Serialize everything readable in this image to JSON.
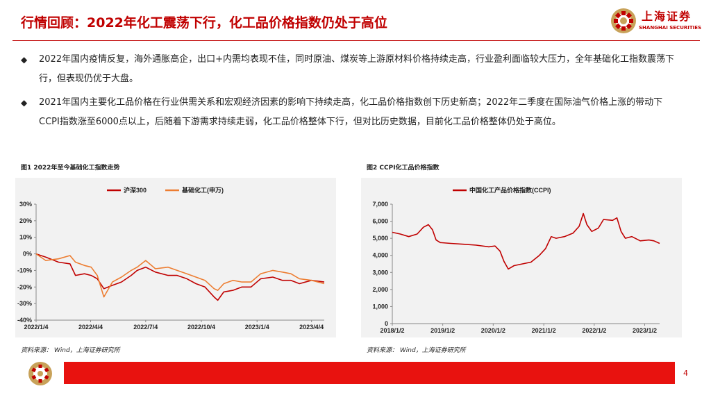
{
  "page": {
    "title": "行情回顾：2022年化工震荡下行，化工品价格指数仍处于高位",
    "logo_cn": "上海证券",
    "logo_en": "SHANGHAI SECURITIES",
    "page_number": "4",
    "brand_color": "#c00000"
  },
  "bullets": [
    "2022年国内疫情反复，海外通胀高企，出口+内需均表现不佳，同时原油、煤炭等上游原材料价格持续走高，行业盈利面临较大压力，全年基础化工指数震荡下行，但表现仍优于大盘。",
    "2021年国内主要化工品价格在行业供需关系和宏观经济因素的影响下持续走高，化工品价格指数创下历史新高；2022年二季度在国际油气价格上涨的带动下CCPI指数涨至6000点以上，后随着下游需求持续走弱，化工品价格整体下行，但对比历史数据，目前化工品价格整体仍处于高位。"
  ],
  "figure1": {
    "title": "图1 2022年至今基础化工指数走势",
    "source": "资料来源： Wind，上海证券研究所"
  },
  "figure2": {
    "title": "图2 CCPI化工品价格指数",
    "source": "资料来源： Wind，上海证券研究所"
  },
  "chart_data": [
    {
      "type": "line",
      "y_ticks": [
        "30%",
        "20%",
        "10%",
        "0%",
        "-10%",
        "-20%",
        "-30%",
        "-40%"
      ],
      "ylim": [
        -40,
        30
      ],
      "x_ticks": [
        "2022/1/4",
        "2022/4/4",
        "2022/7/4",
        "2022/10/4",
        "2023/1/4",
        "2023/4/4"
      ],
      "x_range": [
        "2022-01-04",
        "2023-04-25"
      ],
      "legend_position": "top",
      "series": [
        {
          "name": "沪深300",
          "color": "#c00000",
          "points": [
            [
              "2022-01-04",
              0
            ],
            [
              "2022-01-20",
              -2
            ],
            [
              "2022-02-10",
              -5
            ],
            [
              "2022-03-01",
              -6
            ],
            [
              "2022-03-10",
              -13
            ],
            [
              "2022-03-25",
              -12
            ],
            [
              "2022-04-05",
              -13
            ],
            [
              "2022-04-15",
              -15
            ],
            [
              "2022-04-26",
              -21
            ],
            [
              "2022-05-10",
              -19
            ],
            [
              "2022-05-25",
              -17
            ],
            [
              "2022-06-10",
              -13
            ],
            [
              "2022-06-20",
              -10
            ],
            [
              "2022-07-04",
              -8
            ],
            [
              "2022-07-20",
              -11
            ],
            [
              "2022-08-10",
              -13
            ],
            [
              "2022-08-25",
              -13
            ],
            [
              "2022-09-10",
              -15
            ],
            [
              "2022-09-25",
              -18
            ],
            [
              "2022-10-10",
              -20
            ],
            [
              "2022-10-25",
              -26
            ],
            [
              "2022-10-31",
              -28
            ],
            [
              "2022-11-10",
              -23
            ],
            [
              "2022-11-25",
              -22
            ],
            [
              "2022-12-10",
              -20
            ],
            [
              "2022-12-25",
              -20
            ],
            [
              "2023-01-10",
              -15
            ],
            [
              "2023-01-30",
              -14
            ],
            [
              "2023-02-15",
              -16
            ],
            [
              "2023-03-01",
              -16
            ],
            [
              "2023-03-15",
              -18
            ],
            [
              "2023-04-04",
              -16
            ],
            [
              "2023-04-25",
              -17
            ]
          ]
        },
        {
          "name": "基础化工(申万)",
          "color": "#ed7d31",
          "points": [
            [
              "2022-01-04",
              0
            ],
            [
              "2022-01-20",
              -4
            ],
            [
              "2022-02-10",
              -3
            ],
            [
              "2022-03-01",
              -1
            ],
            [
              "2022-03-10",
              -5
            ],
            [
              "2022-03-25",
              -7
            ],
            [
              "2022-04-05",
              -8
            ],
            [
              "2022-04-15",
              -13
            ],
            [
              "2022-04-26",
              -26
            ],
            [
              "2022-05-10",
              -17
            ],
            [
              "2022-05-25",
              -14
            ],
            [
              "2022-06-10",
              -10
            ],
            [
              "2022-06-20",
              -8
            ],
            [
              "2022-07-04",
              -4
            ],
            [
              "2022-07-20",
              -9
            ],
            [
              "2022-08-10",
              -8
            ],
            [
              "2022-08-25",
              -10
            ],
            [
              "2022-09-10",
              -12
            ],
            [
              "2022-09-25",
              -14
            ],
            [
              "2022-10-10",
              -16
            ],
            [
              "2022-10-25",
              -21
            ],
            [
              "2022-10-31",
              -22
            ],
            [
              "2022-11-10",
              -18
            ],
            [
              "2022-11-25",
              -16
            ],
            [
              "2022-12-10",
              -17
            ],
            [
              "2022-12-25",
              -17
            ],
            [
              "2023-01-10",
              -12
            ],
            [
              "2023-01-30",
              -10
            ],
            [
              "2023-02-15",
              -11
            ],
            [
              "2023-03-01",
              -12
            ],
            [
              "2023-03-15",
              -15
            ],
            [
              "2023-04-04",
              -16
            ],
            [
              "2023-04-25",
              -18
            ]
          ]
        }
      ]
    },
    {
      "type": "line",
      "y_ticks": [
        "7,000",
        "6,000",
        "5,000",
        "4,000",
        "3,000",
        "2,000",
        "1,000",
        "0"
      ],
      "ylim": [
        0,
        7000
      ],
      "x_ticks": [
        "2018/1/2",
        "2019/1/2",
        "2020/1/2",
        "2021/1/2",
        "2022/1/2",
        "2023/1/2"
      ],
      "x_range": [
        "2018-01-02",
        "2023-04-20"
      ],
      "legend_position": "top",
      "series": [
        {
          "name": "中国化工产品价格指数(CCPI)",
          "color": "#c00000",
          "points": [
            [
              "2018-01-02",
              5350
            ],
            [
              "2018-03-01",
              5250
            ],
            [
              "2018-05-01",
              5100
            ],
            [
              "2018-07-01",
              5250
            ],
            [
              "2018-08-15",
              5650
            ],
            [
              "2018-09-20",
              5800
            ],
            [
              "2018-10-20",
              5500
            ],
            [
              "2018-11-15",
              4900
            ],
            [
              "2018-12-15",
              4750
            ],
            [
              "2019-03-01",
              4700
            ],
            [
              "2019-06-01",
              4650
            ],
            [
              "2019-09-01",
              4600
            ],
            [
              "2019-12-01",
              4500
            ],
            [
              "2020-01-15",
              4550
            ],
            [
              "2020-02-20",
              4250
            ],
            [
              "2020-03-20",
              3650
            ],
            [
              "2020-04-20",
              3200
            ],
            [
              "2020-06-01",
              3400
            ],
            [
              "2020-08-01",
              3500
            ],
            [
              "2020-10-01",
              3600
            ],
            [
              "2020-12-01",
              4000
            ],
            [
              "2021-01-15",
              4400
            ],
            [
              "2021-02-25",
              5100
            ],
            [
              "2021-04-01",
              5000
            ],
            [
              "2021-06-01",
              5100
            ],
            [
              "2021-08-01",
              5300
            ],
            [
              "2021-09-15",
              5700
            ],
            [
              "2021-10-15",
              6450
            ],
            [
              "2021-11-10",
              5800
            ],
            [
              "2021-12-15",
              5400
            ],
            [
              "2022-02-01",
              5600
            ],
            [
              "2022-03-10",
              6100
            ],
            [
              "2022-05-15",
              6050
            ],
            [
              "2022-06-15",
              6200
            ],
            [
              "2022-07-15",
              5400
            ],
            [
              "2022-08-15",
              5000
            ],
            [
              "2022-10-01",
              5100
            ],
            [
              "2022-12-01",
              4850
            ],
            [
              "2023-02-01",
              4900
            ],
            [
              "2023-03-10",
              4850
            ],
            [
              "2023-04-20",
              4700
            ]
          ]
        }
      ]
    }
  ]
}
